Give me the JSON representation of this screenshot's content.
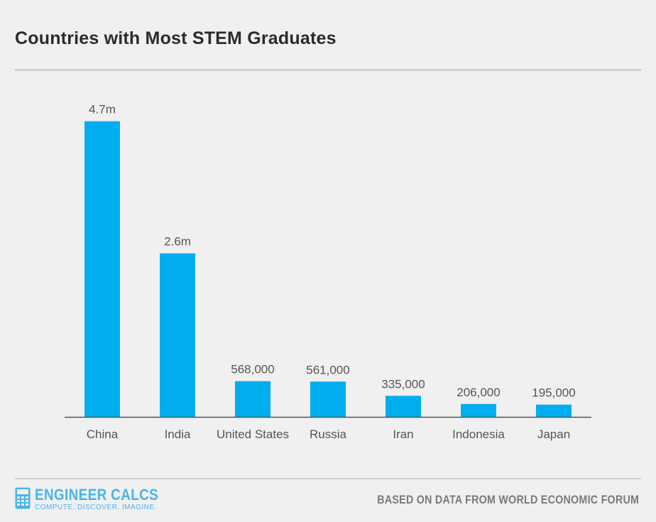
{
  "header": {
    "title": "Countries with Most STEM Graduates"
  },
  "footer": {
    "brand": "ENGINEER CALCS",
    "tagline": "COMPUTE. DISCOVER. IMAGINE.",
    "source": "BASED ON DATA FROM WORLD ECONOMIC FORUM",
    "logo_icon": "calculator-icon"
  },
  "colors": {
    "bar": "#00aeef",
    "axis": "#555555",
    "label": "#555555",
    "brand": "#4bb4e9"
  },
  "chart_data": {
    "type": "bar",
    "title": "Countries with Most STEM Graduates",
    "xlabel": "",
    "ylabel": "",
    "categories": [
      "China",
      "India",
      "United States",
      "Russia",
      "Iran",
      "Indonesia",
      "Japan"
    ],
    "values": [
      4700000,
      2600000,
      568000,
      561000,
      335000,
      206000,
      195000
    ],
    "data_labels": [
      "4.7m",
      "2.6m",
      "568,000",
      "561,000",
      "335,000",
      "206,000",
      "195,000"
    ],
    "ylim": [
      0,
      5250000
    ],
    "grid": false,
    "legend": "none"
  }
}
